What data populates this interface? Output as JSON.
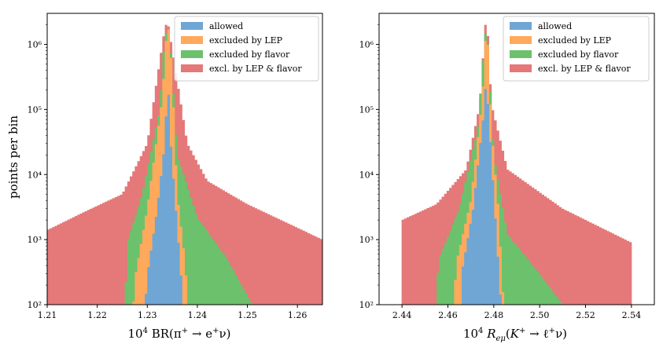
{
  "figure": {
    "ylabel": "points per bin",
    "legend_entries": [
      "allowed",
      "excluded by LEP",
      "excluded by flavor",
      "excl. by LEP & flavor"
    ]
  },
  "chart_data": [
    {
      "type": "histogram",
      "scale": "log",
      "title": "",
      "xlabel": "10^4 BR(π⁺ → e⁺ν)",
      "ylabel": "points per bin",
      "xlim": [
        1.21,
        1.265
      ],
      "ylim": [
        100,
        3000000
      ],
      "xticks": [
        1.21,
        1.22,
        1.23,
        1.24,
        1.25,
        1.26
      ],
      "xtick_labels": [
        "1.21",
        "1.22",
        "1.23",
        "1.24",
        "1.25",
        "1.26"
      ],
      "yticks": [
        100,
        1000,
        10000,
        100000,
        1000000
      ],
      "ytick_labels": [
        "10²",
        "10³",
        "10⁴",
        "10⁵",
        "10⁶"
      ],
      "legend_position": "top-right",
      "series": [
        {
          "name": "excl. by LEP & flavor",
          "color": "#e57878",
          "bins": [
            [
              1.21,
              1400
            ],
            [
              1.218,
              2800
            ],
            [
              1.225,
              5000
            ],
            [
              1.23,
              30000
            ],
            [
              1.2336,
              2000000
            ],
            [
              1.2342,
              2000000
            ],
            [
              1.238,
              30000
            ],
            [
              1.242,
              8000
            ],
            [
              1.25,
              3500
            ],
            [
              1.258,
              1800
            ],
            [
              1.265,
              1000
            ]
          ]
        },
        {
          "name": "excluded by flavor",
          "color": "#6cc16c",
          "bins": [
            [
              1.2255,
              100
            ],
            [
              1.2262,
              1000
            ],
            [
              1.229,
              5000
            ],
            [
              1.2325,
              100000
            ],
            [
              1.2335,
              1500000
            ],
            [
              1.2345,
              1500000
            ],
            [
              1.236,
              20000
            ],
            [
              1.24,
              2200
            ],
            [
              1.246,
              500
            ],
            [
              1.251,
              100
            ]
          ]
        },
        {
          "name": "excluded by LEP",
          "color": "#ffa95c",
          "bins": [
            [
              1.2272,
              100
            ],
            [
              1.2277,
              300
            ],
            [
              1.23,
              3000
            ],
            [
              1.233,
              150000
            ],
            [
              1.2339,
              1700000
            ],
            [
              1.2344,
              1700000
            ],
            [
              1.235,
              300000
            ],
            [
              1.236,
              5000
            ],
            [
              1.2375,
              500
            ],
            [
              1.2382,
              100
            ]
          ]
        },
        {
          "name": "allowed",
          "color": "#6fa6d4",
          "bins": [
            [
              1.2296,
              100
            ],
            [
              1.23,
              280
            ],
            [
              1.232,
              3000
            ],
            [
              1.2335,
              30000
            ],
            [
              1.2341,
              300000
            ],
            [
              1.2347,
              30000
            ],
            [
              1.2362,
              1000
            ],
            [
              1.2368,
              250
            ],
            [
              1.2372,
              100
            ]
          ]
        }
      ]
    },
    {
      "type": "histogram",
      "scale": "log",
      "title": "",
      "xlabel": "10^4 R_eμ(K⁺ → ℓ⁺ν)",
      "ylabel": "",
      "xlim": [
        2.43,
        2.55
      ],
      "ylim": [
        100,
        3000000
      ],
      "xticks": [
        2.44,
        2.46,
        2.48,
        2.5,
        2.52,
        2.54
      ],
      "xtick_labels": [
        "2.44",
        "2.46",
        "2.48",
        "2.50",
        "2.52",
        "2.54"
      ],
      "yticks": [
        100,
        1000,
        10000,
        100000,
        1000000
      ],
      "ytick_labels": [
        "10²",
        "10³",
        "10⁴",
        "10⁵",
        "10⁶"
      ],
      "legend_position": "top-right",
      "series": [
        {
          "name": "excl. by LEP & flavor",
          "color": "#e57878",
          "bins": [
            [
              2.44,
              2000
            ],
            [
              2.455,
              3500
            ],
            [
              2.468,
              12000
            ],
            [
              2.474,
              120000
            ],
            [
              2.4762,
              2000000
            ],
            [
              2.4772,
              2000000
            ],
            [
              2.479,
              120000
            ],
            [
              2.486,
              12000
            ],
            [
              2.51,
              3000
            ],
            [
              2.54,
              900
            ]
          ]
        },
        {
          "name": "excluded by flavor",
          "color": "#6cc16c",
          "bins": [
            [
              2.4548,
              100
            ],
            [
              2.456,
              500
            ],
            [
              2.465,
              3000
            ],
            [
              2.473,
              50000
            ],
            [
              2.4762,
              1500000
            ],
            [
              2.4772,
              1500000
            ],
            [
              2.48,
              20000
            ],
            [
              2.486,
              1200
            ],
            [
              2.5,
              300
            ],
            [
              2.51,
              100
            ]
          ]
        },
        {
          "name": "excluded by LEP",
          "color": "#ffa95c",
          "bins": [
            [
              2.4624,
              100
            ],
            [
              2.464,
              500
            ],
            [
              2.47,
              4000
            ],
            [
              2.475,
              150000
            ],
            [
              2.4766,
              1600000
            ],
            [
              2.4772,
              1600000
            ],
            [
              2.479,
              50000
            ],
            [
              2.482,
              3000
            ],
            [
              2.4843,
              100
            ]
          ]
        },
        {
          "name": "allowed",
          "color": "#6fa6d4",
          "bins": [
            [
              2.4656,
              100
            ],
            [
              2.466,
              300
            ],
            [
              2.471,
              3000
            ],
            [
              2.4755,
              80000
            ],
            [
              2.4767,
              300000
            ],
            [
              2.4778,
              80000
            ],
            [
              2.481,
              1500
            ],
            [
              2.4832,
              100
            ]
          ]
        }
      ]
    }
  ]
}
